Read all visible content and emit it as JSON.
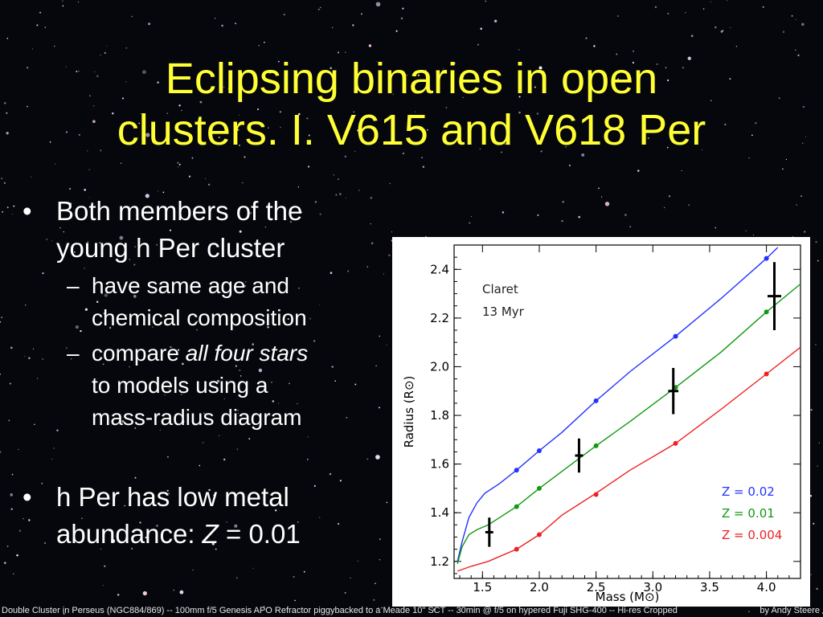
{
  "slide": {
    "title_line1": "Eclipsing binaries in open",
    "title_line2": "clusters. I. V615 and V618 Per",
    "bullet1_line1": "Both members of the",
    "bullet1_line2": "young h Per cluster",
    "sub1_line1": "have same age and",
    "sub1_line2": "chemical composition",
    "sub2_prefix": "compare ",
    "sub2_italic": "all four stars",
    "sub2_line2": "to models using a",
    "sub2_line3": "mass-radius diagram",
    "bullet2_line1": "h Per has low metal",
    "bullet2_prefix": "abundance: ",
    "bullet2_italic": "Z",
    "bullet2_suffix": " = 0.01",
    "bullet_mark": "•",
    "dash_mark": "–"
  },
  "footer": {
    "left": "Double Cluster in Perseus (NGC884/869) -- 100mm f/5 Genesis APO Refractor piggybacked to a Meade 10\" SCT -- 30min @ f/5 on hypered Fuji SHG-400 -- Hi-res Cropped",
    "right": "by Andy Steere"
  },
  "chart_data": {
    "type": "line",
    "xlabel": "Mass (M⊙)",
    "ylabel": "Radius (R⊙)",
    "xlim": [
      1.25,
      4.3
    ],
    "ylim": [
      1.13,
      2.5
    ],
    "xticks": [
      "1.5",
      "2.0",
      "2.5",
      "3.0",
      "3.5",
      "4.0"
    ],
    "yticks": [
      "1.2",
      "1.4",
      "1.6",
      "1.8",
      "2.0",
      "2.2",
      "2.4"
    ],
    "annotation_line1": "Claret",
    "annotation_line2": "13 Myr",
    "legend_position": "bottom-right",
    "series": [
      {
        "name": "Z = 0.02",
        "color": "#2233ff",
        "curve": [
          [
            1.28,
            1.2
          ],
          [
            1.32,
            1.28
          ],
          [
            1.38,
            1.38
          ],
          [
            1.45,
            1.44
          ],
          [
            1.52,
            1.48
          ],
          [
            1.65,
            1.52
          ],
          [
            1.8,
            1.575
          ],
          [
            2.0,
            1.655
          ],
          [
            2.2,
            1.73
          ],
          [
            2.5,
            1.86
          ],
          [
            2.8,
            1.98
          ],
          [
            3.2,
            2.125
          ],
          [
            3.6,
            2.28
          ],
          [
            4.0,
            2.445
          ],
          [
            4.1,
            2.49
          ]
        ],
        "points": [
          [
            1.8,
            1.575
          ],
          [
            2.0,
            1.655
          ],
          [
            2.5,
            1.86
          ],
          [
            3.2,
            2.125
          ],
          [
            4.0,
            2.445
          ]
        ]
      },
      {
        "name": "Z = 0.01",
        "color": "#119911",
        "curve": [
          [
            1.28,
            1.19
          ],
          [
            1.32,
            1.26
          ],
          [
            1.38,
            1.31
          ],
          [
            1.45,
            1.33
          ],
          [
            1.55,
            1.35
          ],
          [
            1.65,
            1.38
          ],
          [
            1.8,
            1.425
          ],
          [
            2.0,
            1.5
          ],
          [
            2.2,
            1.57
          ],
          [
            2.5,
            1.675
          ],
          [
            2.8,
            1.775
          ],
          [
            3.2,
            1.915
          ],
          [
            3.6,
            2.06
          ],
          [
            4.0,
            2.225
          ],
          [
            4.3,
            2.34
          ]
        ],
        "points": [
          [
            1.8,
            1.425
          ],
          [
            2.0,
            1.5
          ],
          [
            2.5,
            1.675
          ],
          [
            3.2,
            1.915
          ],
          [
            4.0,
            2.225
          ]
        ]
      },
      {
        "name": "Z = 0.004",
        "color": "#ee2222",
        "curve": [
          [
            1.28,
            1.16
          ],
          [
            1.4,
            1.18
          ],
          [
            1.55,
            1.2
          ],
          [
            1.7,
            1.23
          ],
          [
            1.8,
            1.25
          ],
          [
            2.0,
            1.31
          ],
          [
            2.2,
            1.39
          ],
          [
            2.5,
            1.48
          ],
          [
            2.8,
            1.575
          ],
          [
            3.2,
            1.685
          ],
          [
            3.6,
            1.825
          ],
          [
            4.0,
            1.97
          ],
          [
            4.3,
            2.08
          ]
        ],
        "points": [
          [
            1.8,
            1.25
          ],
          [
            2.0,
            1.31
          ],
          [
            2.5,
            1.475
          ],
          [
            3.2,
            1.685
          ],
          [
            4.0,
            1.97
          ]
        ]
      }
    ],
    "observed": [
      {
        "x": 1.56,
        "y": 1.32,
        "yerr": 0.06,
        "xerr": 0.035
      },
      {
        "x": 2.35,
        "y": 1.635,
        "yerr": 0.07,
        "xerr": 0.035
      },
      {
        "x": 3.18,
        "y": 1.9,
        "yerr": 0.095,
        "xerr": 0.045
      },
      {
        "x": 4.07,
        "y": 2.29,
        "yerr": 0.14,
        "xerr": 0.06
      }
    ]
  }
}
